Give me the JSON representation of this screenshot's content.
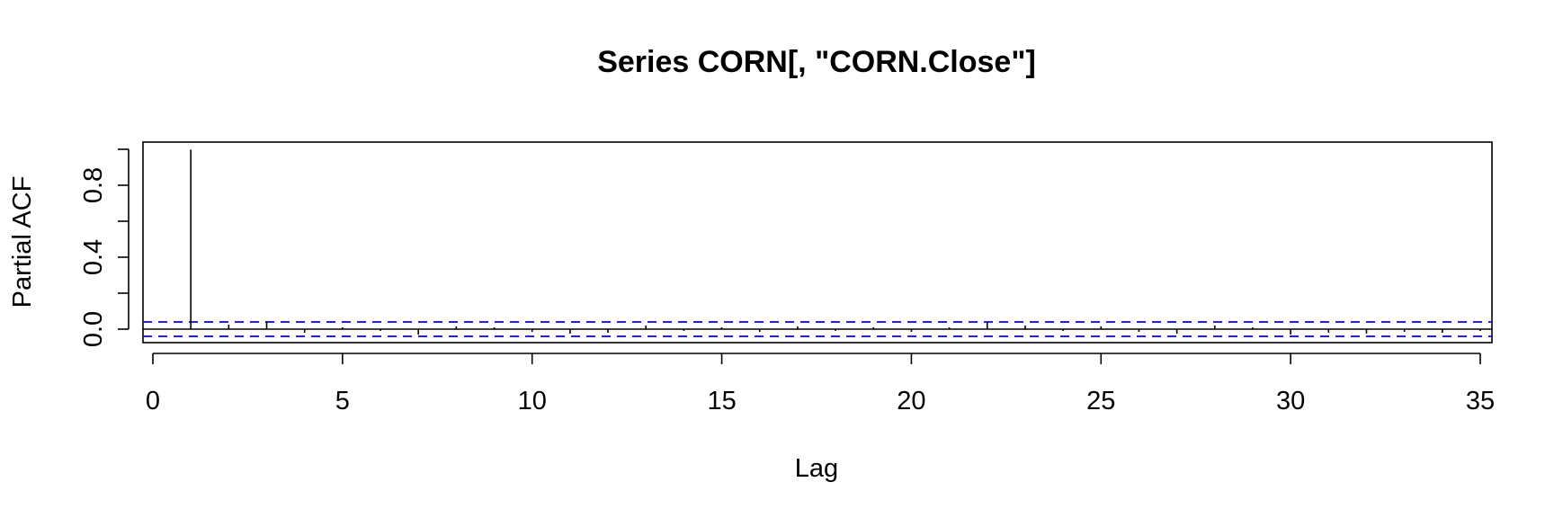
{
  "chart_data": {
    "type": "bar",
    "title": "Series  CORN[, \"CORN.Close\"]",
    "xlabel": "Lag",
    "ylabel": "Partial ACF",
    "xlim": [
      0,
      35
    ],
    "ylim": [
      -0.05,
      1.0
    ],
    "x_ticks": [
      "0",
      "5",
      "10",
      "15",
      "20",
      "25",
      "30",
      "35"
    ],
    "y_ticks": [
      "0.0",
      "0.4",
      "0.8"
    ],
    "confidence_interval": 0.04,
    "lags": [
      1,
      2,
      3,
      4,
      5,
      6,
      7,
      8,
      9,
      10,
      11,
      12,
      13,
      14,
      15,
      16,
      17,
      18,
      19,
      20,
      21,
      22,
      23,
      24,
      25,
      26,
      27,
      28,
      29,
      30,
      31,
      32,
      33,
      34,
      35
    ],
    "values": [
      0.998,
      0.025,
      0.045,
      -0.02,
      0.01,
      -0.01,
      -0.03,
      0.015,
      0.01,
      -0.015,
      -0.025,
      -0.02,
      0.02,
      -0.01,
      0.01,
      -0.015,
      0.015,
      -0.01,
      0.01,
      -0.015,
      0.01,
      0.04,
      0.02,
      -0.01,
      0.015,
      -0.015,
      -0.025,
      0.02,
      0.01,
      -0.03,
      -0.02,
      -0.025,
      -0.015,
      -0.02,
      -0.01
    ],
    "colors": {
      "bars": "#000000",
      "ci_lines": "#0000ff",
      "axes": "#000000"
    }
  }
}
